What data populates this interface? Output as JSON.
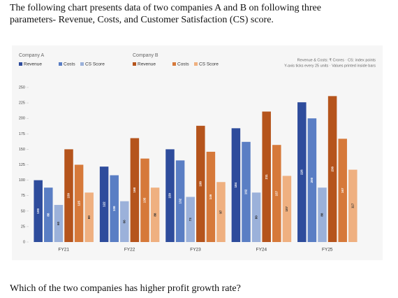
{
  "intro": [
    "The following chart presents data of two companies A and B on following three",
    "parameters- Revenue, Costs, and Customer Satisfaction (CS) score."
  ],
  "question": "Which of the two companies has higher profit growth rate?",
  "chart_data": {
    "type": "bar",
    "notes": [
      "Revenue & Costs: ₹ Crores · CS: index points",
      "Y-axis ticks every 25 units · Values printed inside bars"
    ],
    "legend_groups": [
      "Company A",
      "Company B"
    ],
    "categories": [
      "FY21",
      "FY22",
      "FY23",
      "FY24",
      "FY25"
    ],
    "series": [
      {
        "name": "Revenue",
        "color": "#2e4c9c",
        "values": [
          100,
          122,
          150,
          184,
          226
        ]
      },
      {
        "name": "Costs",
        "color": "#5a7ec4",
        "values": [
          88,
          108,
          132,
          162,
          200
        ]
      },
      {
        "name": "CS Score",
        "color": "#9bb1da",
        "values": [
          60,
          66,
          73,
          80,
          88
        ]
      },
      {
        "name": "Revenue",
        "color": "#b5541c",
        "values": [
          150,
          168,
          188,
          211,
          236
        ]
      },
      {
        "name": "Costs",
        "color": "#d6793a",
        "values": [
          125,
          135,
          146,
          157,
          167
        ]
      },
      {
        "name": "CS Score",
        "color": "#efb080",
        "values": [
          80,
          88,
          97,
          107,
          117
        ]
      }
    ],
    "ylim": [
      0,
      250
    ],
    "yticks": [
      0,
      25,
      50,
      75,
      100,
      125,
      150,
      175,
      200,
      225,
      250
    ]
  }
}
